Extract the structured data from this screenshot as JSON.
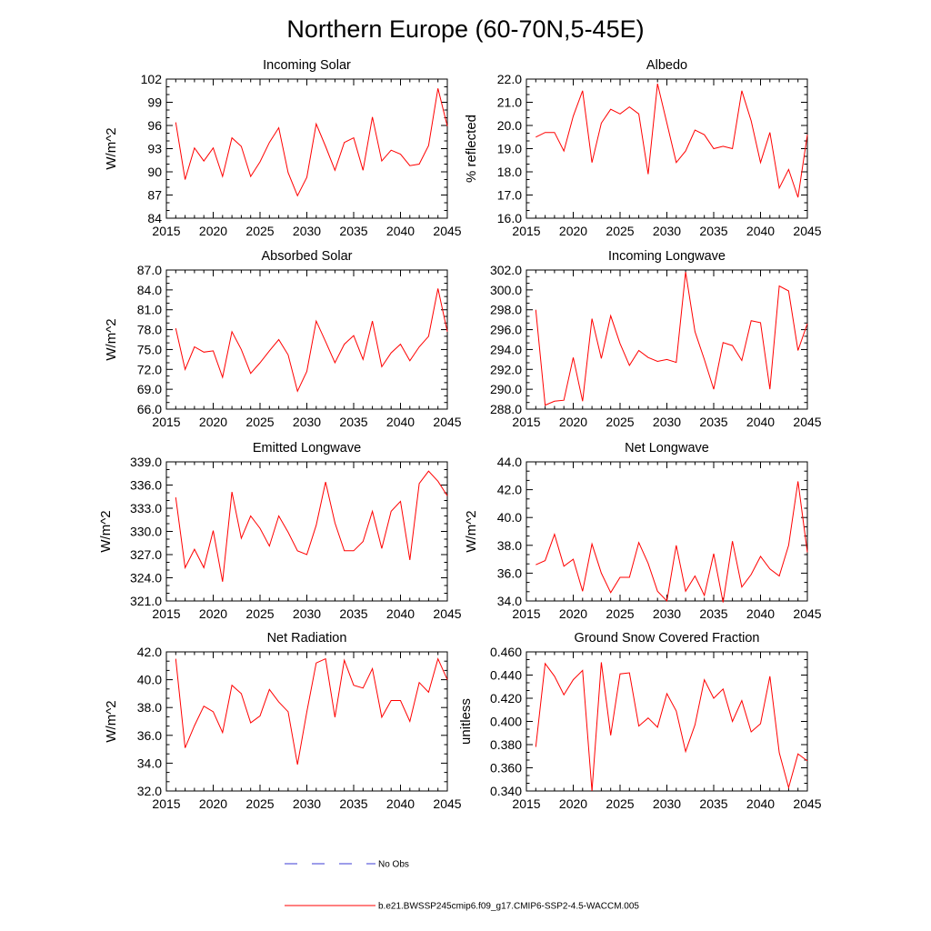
{
  "figure": {
    "title": "Northern Europe (60-70N,5-45E)",
    "line_color": "#ff0000",
    "obs_color": "#3b3bd6"
  },
  "legend": {
    "obs_label": "No Obs",
    "model_label": "b.e21.BWSSP245cmip6.f09_g17.CMIP6-SSP2-4.5-WACCM.005"
  },
  "chart_data": [
    {
      "type": "line",
      "title": "Incoming Solar",
      "xlabel": "",
      "ylabel": "W/m^2",
      "xlim": [
        2015,
        2045
      ],
      "ylim": [
        84,
        102
      ],
      "x_ticks": [
        "2015",
        "2020",
        "2025",
        "2030",
        "2035",
        "2040",
        "2045"
      ],
      "y_ticks": [
        "84",
        "87",
        "90",
        "93",
        "96",
        "99",
        "102"
      ],
      "series": [
        {
          "name": "b.e21.BWSSP245cmip6.f09_g17.CMIP6-SSP2-4.5-WACCM.005",
          "x": [
            2016,
            2017,
            2018,
            2019,
            2020,
            2021,
            2022,
            2023,
            2024,
            2025,
            2026,
            2027,
            2028,
            2029,
            2030,
            2031,
            2032,
            2033,
            2034,
            2035,
            2036,
            2037,
            2038,
            2039,
            2040,
            2041,
            2042,
            2043,
            2044,
            2045
          ],
          "y": [
            96.4,
            89.0,
            93.1,
            91.4,
            93.1,
            89.4,
            94.4,
            93.3,
            89.4,
            91.3,
            93.8,
            95.7,
            89.9,
            86.9,
            89.3,
            96.2,
            93.3,
            90.2,
            93.8,
            94.4,
            90.2,
            97.1,
            91.4,
            92.8,
            92.3,
            90.8,
            91.0,
            93.4,
            100.8,
            95.9
          ]
        }
      ]
    },
    {
      "type": "line",
      "title": "Albedo",
      "xlabel": "",
      "ylabel": "% reflected",
      "xlim": [
        2015,
        2045
      ],
      "ylim": [
        16.0,
        22.0
      ],
      "x_ticks": [
        "2015",
        "2020",
        "2025",
        "2030",
        "2035",
        "2040",
        "2045"
      ],
      "y_ticks": [
        "16.0",
        "17.0",
        "18.0",
        "19.0",
        "20.0",
        "21.0",
        "22.0"
      ],
      "series": [
        {
          "name": "b.e21.BWSSP245cmip6.f09_g17.CMIP6-SSP2-4.5-WACCM.005",
          "x": [
            2016,
            2017,
            2018,
            2019,
            2020,
            2021,
            2022,
            2023,
            2024,
            2025,
            2026,
            2027,
            2028,
            2029,
            2030,
            2031,
            2032,
            2033,
            2034,
            2035,
            2036,
            2037,
            2038,
            2039,
            2040,
            2041,
            2042,
            2043,
            2044,
            2045
          ],
          "y": [
            19.5,
            19.7,
            19.7,
            18.9,
            20.4,
            21.5,
            18.4,
            20.1,
            20.7,
            20.5,
            20.8,
            20.5,
            17.9,
            21.8,
            20.1,
            18.4,
            18.9,
            19.8,
            19.6,
            19.0,
            19.1,
            19.0,
            21.5,
            20.2,
            18.4,
            19.7,
            17.3,
            18.1,
            16.9,
            19.6
          ]
        }
      ]
    },
    {
      "type": "line",
      "title": "Absorbed Solar",
      "xlabel": "",
      "ylabel": "W/m^2",
      "xlim": [
        2015,
        2045
      ],
      "ylim": [
        66.0,
        87.0
      ],
      "x_ticks": [
        "2015",
        "2020",
        "2025",
        "2030",
        "2035",
        "2040",
        "2045"
      ],
      "y_ticks": [
        "66.0",
        "69.0",
        "72.0",
        "75.0",
        "78.0",
        "81.0",
        "84.0",
        "87.0"
      ],
      "series": [
        {
          "name": "b.e21.BWSSP245cmip6.f09_g17.CMIP6-SSP2-4.5-WACCM.005",
          "x": [
            2016,
            2017,
            2018,
            2019,
            2020,
            2021,
            2022,
            2023,
            2024,
            2025,
            2026,
            2027,
            2028,
            2029,
            2030,
            2031,
            2032,
            2033,
            2034,
            2035,
            2036,
            2037,
            2038,
            2039,
            2040,
            2041,
            2042,
            2043,
            2044,
            2045
          ],
          "y": [
            78.2,
            72.0,
            75.4,
            74.6,
            74.8,
            70.8,
            77.7,
            75.0,
            71.4,
            73.0,
            74.8,
            76.5,
            74.2,
            68.7,
            71.7,
            79.3,
            76.2,
            73.0,
            75.8,
            77.1,
            73.5,
            79.3,
            72.4,
            74.5,
            75.8,
            73.3,
            75.4,
            77.0,
            84.2,
            77.7
          ]
        }
      ]
    },
    {
      "type": "line",
      "title": "Incoming Longwave",
      "xlabel": "",
      "ylabel": "",
      "xlim": [
        2015,
        2045
      ],
      "ylim": [
        288.0,
        302.0
      ],
      "x_ticks": [
        "2015",
        "2020",
        "2025",
        "2030",
        "2035",
        "2040",
        "2045"
      ],
      "y_ticks": [
        "288.0",
        "290.0",
        "292.0",
        "294.0",
        "296.0",
        "298.0",
        "300.0",
        "302.0"
      ],
      "series": [
        {
          "name": "b.e21.BWSSP245cmip6.f09_g17.CMIP6-SSP2-4.5-WACCM.005",
          "x": [
            2016,
            2017,
            2018,
            2019,
            2020,
            2021,
            2022,
            2023,
            2024,
            2025,
            2026,
            2027,
            2028,
            2029,
            2030,
            2031,
            2032,
            2033,
            2034,
            2035,
            2036,
            2037,
            2038,
            2039,
            2040,
            2041,
            2042,
            2043,
            2044,
            2045
          ],
          "y": [
            298.0,
            288.4,
            288.8,
            288.9,
            293.2,
            288.8,
            297.1,
            293.1,
            297.4,
            294.6,
            292.4,
            293.9,
            293.2,
            292.8,
            293.0,
            292.7,
            301.8,
            295.8,
            293.0,
            290.0,
            294.7,
            294.4,
            292.9,
            296.9,
            296.7,
            290.0,
            300.4,
            299.9,
            293.9,
            296.6
          ]
        }
      ]
    },
    {
      "type": "line",
      "title": "Emitted Longwave",
      "xlabel": "",
      "ylabel": "W/m^2",
      "xlim": [
        2015,
        2045
      ],
      "ylim": [
        321.0,
        339.0
      ],
      "x_ticks": [
        "2015",
        "2020",
        "2025",
        "2030",
        "2035",
        "2040",
        "2045"
      ],
      "y_ticks": [
        "321.0",
        "324.0",
        "327.0",
        "330.0",
        "333.0",
        "336.0",
        "339.0"
      ],
      "series": [
        {
          "name": "b.e21.BWSSP245cmip6.f09_g17.CMIP6-SSP2-4.5-WACCM.005",
          "x": [
            2016,
            2017,
            2018,
            2019,
            2020,
            2021,
            2022,
            2023,
            2024,
            2025,
            2026,
            2027,
            2028,
            2029,
            2030,
            2031,
            2032,
            2033,
            2034,
            2035,
            2036,
            2037,
            2038,
            2039,
            2040,
            2041,
            2042,
            2043,
            2044,
            2045
          ],
          "y": [
            334.4,
            325.3,
            327.7,
            325.3,
            330.1,
            323.5,
            335.1,
            329.1,
            332.0,
            330.4,
            328.1,
            332.0,
            329.9,
            327.5,
            327.0,
            330.8,
            336.4,
            331.1,
            327.5,
            327.5,
            328.7,
            332.6,
            327.8,
            332.6,
            333.9,
            326.3,
            336.2,
            337.8,
            336.5,
            334.6
          ]
        }
      ]
    },
    {
      "type": "line",
      "title": "Net Longwave",
      "xlabel": "",
      "ylabel": "W/m^2",
      "xlim": [
        2015,
        2045
      ],
      "ylim": [
        34.0,
        44.0
      ],
      "x_ticks": [
        "2015",
        "2020",
        "2025",
        "2030",
        "2035",
        "2040",
        "2045"
      ],
      "y_ticks": [
        "34.0",
        "36.0",
        "38.0",
        "40.0",
        "42.0",
        "44.0"
      ],
      "series": [
        {
          "name": "b.e21.BWSSP245cmip6.f09_g17.CMIP6-SSP2-4.5-WACCM.005",
          "x": [
            2016,
            2017,
            2018,
            2019,
            2020,
            2021,
            2022,
            2023,
            2024,
            2025,
            2026,
            2027,
            2028,
            2029,
            2030,
            2031,
            2032,
            2033,
            2034,
            2035,
            2036,
            2037,
            2038,
            2039,
            2040,
            2041,
            2042,
            2043,
            2044,
            2045
          ],
          "y": [
            36.6,
            36.9,
            38.8,
            36.5,
            37.0,
            34.7,
            38.1,
            36.0,
            34.6,
            35.7,
            35.7,
            38.2,
            36.7,
            34.7,
            34.0,
            38.0,
            34.7,
            35.8,
            34.4,
            37.4,
            33.9,
            38.3,
            35.0,
            35.9,
            37.2,
            36.3,
            35.8,
            38.0,
            42.6,
            37.5
          ]
        }
      ]
    },
    {
      "type": "line",
      "title": "Net Radiation",
      "xlabel": "",
      "ylabel": "W/m^2",
      "xlim": [
        2015,
        2045
      ],
      "ylim": [
        32.0,
        42.0
      ],
      "x_ticks": [
        "2015",
        "2020",
        "2025",
        "2030",
        "2035",
        "2040",
        "2045"
      ],
      "y_ticks": [
        "32.0",
        "34.0",
        "36.0",
        "38.0",
        "40.0",
        "42.0"
      ],
      "series": [
        {
          "name": "b.e21.BWSSP245cmip6.f09_g17.CMIP6-SSP2-4.5-WACCM.005",
          "x": [
            2016,
            2017,
            2018,
            2019,
            2020,
            2021,
            2022,
            2023,
            2024,
            2025,
            2026,
            2027,
            2028,
            2029,
            2030,
            2031,
            2032,
            2033,
            2034,
            2035,
            2036,
            2037,
            2038,
            2039,
            2040,
            2041,
            2042,
            2043,
            2044,
            2045
          ],
          "y": [
            41.5,
            35.1,
            36.7,
            38.1,
            37.7,
            36.2,
            39.6,
            39.0,
            36.9,
            37.4,
            39.3,
            38.4,
            37.7,
            33.9,
            37.7,
            41.2,
            41.5,
            37.3,
            41.4,
            39.6,
            39.4,
            40.8,
            37.3,
            38.5,
            38.5,
            37.0,
            39.8,
            39.1,
            41.5,
            40.0
          ]
        }
      ]
    },
    {
      "type": "line",
      "title": "Ground Snow Covered Fraction",
      "xlabel": "",
      "ylabel": "unitless",
      "xlim": [
        2015,
        2045
      ],
      "ylim": [
        0.34,
        0.46
      ],
      "x_ticks": [
        "2015",
        "2020",
        "2025",
        "2030",
        "2035",
        "2040",
        "2045"
      ],
      "y_ticks": [
        "0.340",
        "0.360",
        "0.380",
        "0.400",
        "0.420",
        "0.440",
        "0.460"
      ],
      "series": [
        {
          "name": "b.e21.BWSSP245cmip6.f09_g17.CMIP6-SSP2-4.5-WACCM.005",
          "x": [
            2016,
            2017,
            2018,
            2019,
            2020,
            2021,
            2022,
            2023,
            2024,
            2025,
            2026,
            2027,
            2028,
            2029,
            2030,
            2031,
            2032,
            2033,
            2034,
            2035,
            2036,
            2037,
            2038,
            2039,
            2040,
            2041,
            2042,
            2043,
            2044,
            2045
          ],
          "y": [
            0.378,
            0.45,
            0.439,
            0.423,
            0.436,
            0.444,
            0.34,
            0.451,
            0.388,
            0.441,
            0.442,
            0.396,
            0.403,
            0.395,
            0.424,
            0.409,
            0.374,
            0.397,
            0.436,
            0.42,
            0.428,
            0.4,
            0.418,
            0.391,
            0.398,
            0.439,
            0.373,
            0.343,
            0.372,
            0.366
          ]
        }
      ]
    }
  ]
}
